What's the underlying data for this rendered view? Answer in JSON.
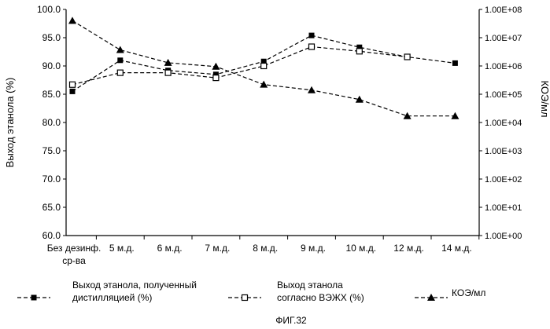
{
  "chart_data": {
    "type": "line",
    "categories": [
      "Без дезинф. ср-ва",
      "5 м.д.",
      "6 м.д.",
      "7 м.д.",
      "8 м.д.",
      "9 м.д.",
      "10 м.д.",
      "12 м.д.",
      "14 м.д."
    ],
    "category_lines": [
      [
        "Без дезинф.",
        "ср-ва"
      ],
      [
        "5 м.д."
      ],
      [
        "6 м.д."
      ],
      [
        "7 м.д."
      ],
      [
        "8 м.д."
      ],
      [
        "9 м.д."
      ],
      [
        "10 м.д."
      ],
      [
        "12 м.д."
      ],
      [
        "14 м.д."
      ]
    ],
    "ylabel": "Выход этанола (%)",
    "ylim": [
      60,
      100
    ],
    "yticks": [
      "60.0",
      "65.0",
      "70.0",
      "75.0",
      "80.0",
      "85.0",
      "90.0",
      "95.0",
      "100.0"
    ],
    "y2label": "КОЭ/мл",
    "y2scale": "log",
    "y2lim": [
      1,
      100000000
    ],
    "y2ticks": [
      "1.00E+00",
      "1.00E+01",
      "1.00E+02",
      "1.00E+03",
      "1.00E+04",
      "1.00E+05",
      "1.00E+06",
      "1.00E+07",
      "1.00E+08"
    ],
    "series": [
      {
        "name": "Выход этанола, полученный дистилляцией (%)",
        "name_lines": [
          "Выход этанола, полученный",
          "дистилляцией (%)"
        ],
        "axis": "left",
        "marker": "filled-square",
        "color": "#000000",
        "values": [
          85.5,
          91.0,
          89.2,
          88.5,
          90.8,
          95.4,
          93.3,
          91.6,
          90.5
        ]
      },
      {
        "name": "Выход этанола согласно ВЭЖХ (%)",
        "name_lines": [
          "Выход этанола",
          "согласно ВЭЖХ (%)"
        ],
        "axis": "left",
        "marker": "open-square",
        "color": "#000000",
        "values": [
          86.7,
          88.8,
          88.8,
          87.9,
          90.0,
          93.4,
          92.6,
          91.6,
          null
        ]
      },
      {
        "name": "КОЭ/мл",
        "name_lines": [
          "КОЭ/мл"
        ],
        "axis": "right",
        "marker": "filled-triangle",
        "color": "#000000",
        "values": [
          40000000,
          3700000,
          1300000,
          950000,
          220000,
          140000,
          65000,
          17000,
          17000
        ]
      }
    ],
    "grid": false,
    "legend_position": "bottom"
  },
  "caption": "ФИГ.32"
}
